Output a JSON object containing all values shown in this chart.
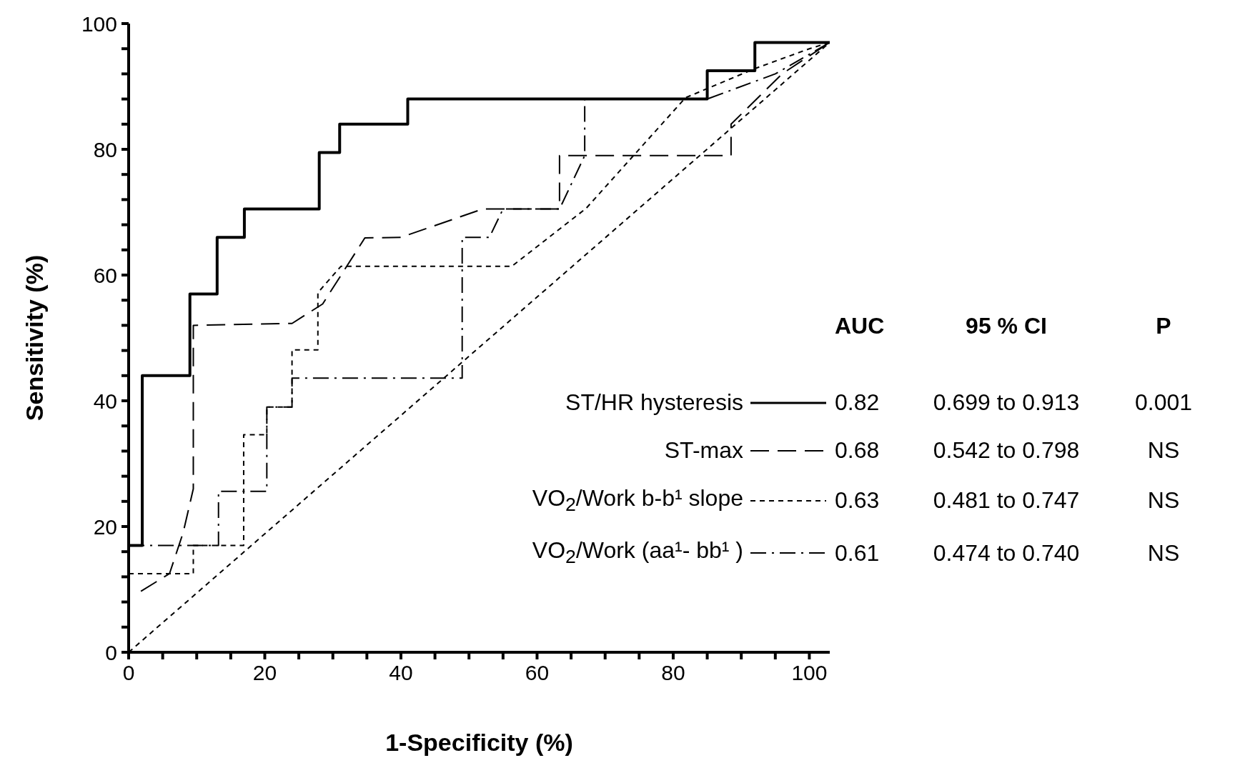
{
  "chart_data": {
    "type": "line",
    "xlabel": "1-Specificity (%)",
    "ylabel": "Sensitivity (%)",
    "xlim": [
      0,
      103
    ],
    "ylim": [
      0,
      100
    ],
    "xticks": [
      0,
      {
        "value": 5,
        "label": null
      },
      {
        "value": 10,
        "label": null
      },
      {
        "value": 15,
        "label": null
      },
      20,
      {
        "value": 25,
        "label": null
      },
      {
        "value": 30,
        "label": null
      },
      {
        "value": 35,
        "label": null
      },
      40,
      {
        "value": 45,
        "label": null
      },
      {
        "value": 50,
        "label": null
      },
      {
        "value": 55,
        "label": null
      },
      60,
      {
        "value": 65,
        "label": null
      },
      {
        "value": 70,
        "label": null
      },
      {
        "value": 75,
        "label": null
      },
      80,
      {
        "value": 85,
        "label": null
      },
      {
        "value": 90,
        "label": null
      },
      {
        "value": 95,
        "label": null
      },
      100
    ],
    "yticks": [
      0,
      {
        "value": 4,
        "label": null
      },
      {
        "value": 8,
        "label": null
      },
      {
        "value": 12,
        "label": null
      },
      {
        "value": 16,
        "label": null
      },
      20,
      {
        "value": 24,
        "label": null
      },
      {
        "value": 28,
        "label": null
      },
      {
        "value": 32,
        "label": null
      },
      {
        "value": 36,
        "label": null
      },
      40,
      {
        "value": 44,
        "label": null
      },
      {
        "value": 48,
        "label": null
      },
      {
        "value": 52,
        "label": null
      },
      {
        "value": 56,
        "label": null
      },
      60,
      {
        "value": 64,
        "label": null
      },
      {
        "value": 68,
        "label": null
      },
      {
        "value": 72,
        "label": null
      },
      {
        "value": 76,
        "label": null
      },
      80,
      {
        "value": 84,
        "label": null
      },
      {
        "value": 88,
        "label": null
      },
      {
        "value": 92,
        "label": null
      },
      {
        "value": 96,
        "label": null
      },
      100
    ],
    "legend": "bottom right",
    "series": [
      {
        "name": "ST/HR hysteresis",
        "color": "#000000",
        "line_style": "solid",
        "x": [
          0,
          2,
          2,
          9,
          9,
          13,
          13,
          17,
          17,
          28,
          28,
          31,
          31,
          41,
          41,
          85,
          85,
          92,
          92,
          103
        ],
        "values": [
          17,
          17,
          44,
          44,
          57,
          57,
          66,
          66,
          70.5,
          70.5,
          79.5,
          79.5,
          84,
          84,
          88,
          88,
          92.5,
          92.5,
          97,
          97
        ]
      },
      {
        "name": "ST-max",
        "color": "#000000",
        "line_style": "dashed",
        "x": [
          1.8,
          6,
          8,
          9.5,
          9.5,
          24,
          28.5,
          34.7,
          40,
          52,
          63.3,
          63.3,
          88.5,
          88.5,
          96,
          103
        ],
        "values": [
          9.7,
          12.5,
          19,
          26,
          52,
          52.3,
          55.4,
          65.9,
          66,
          70.5,
          70.5,
          79,
          79,
          84,
          92,
          97
        ]
      },
      {
        "name": "VO$_{2}$/Work b-b¹ slope",
        "color": "#000000",
        "line_style": "dotted",
        "x": [
          0,
          9.5,
          9.5,
          16.9,
          16.9,
          20.3,
          20.3,
          24,
          24,
          27.8,
          27.8,
          31.2,
          56.3,
          67.2,
          81.8,
          91.9,
          100,
          103
        ],
        "values": [
          12.5,
          12.5,
          17,
          17,
          34.6,
          34.6,
          39,
          39,
          48.1,
          48.1,
          57.2,
          61.4,
          61.4,
          70.6,
          88.2,
          92.8,
          96,
          97
        ]
      },
      {
        "name": "VO$_{2}$/Work (aa¹- bb¹ )",
        "color": "#000000",
        "line_style": "dashdot",
        "x": [
          0,
          13.2,
          13.2,
          20.3,
          20.3,
          24,
          24,
          49,
          49,
          53,
          55,
          63.3,
          67,
          67,
          85,
          95,
          103
        ],
        "values": [
          17,
          17,
          25.6,
          25.6,
          39,
          39,
          43.6,
          43.6,
          66,
          66,
          70.5,
          70.5,
          79,
          88,
          88,
          92,
          97
        ]
      },
      {
        "color": "#000000",
        "line_style": "dotted",
        "x": [
          0,
          103
        ],
        "values": [
          0,
          97
        ]
      }
    ],
    "annotations": [
      "AUC",
      "95 % CI",
      "P",
      "0.82",
      "0.699 to 0.913",
      "0.001",
      "0.68",
      "0.542 to 0.798",
      "NS",
      "0.63",
      "0.481 to 0.747",
      "NS",
      "0.61",
      "0.474 to 0.740",
      "NS"
    ]
  }
}
